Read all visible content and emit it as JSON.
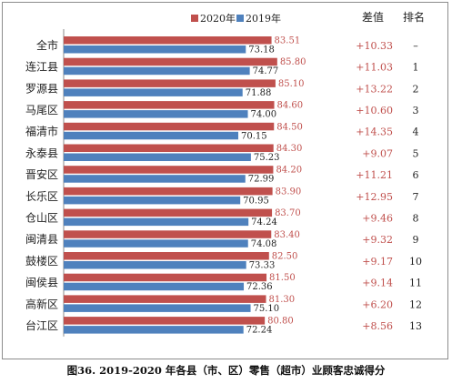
{
  "chart_data": {
    "type": "bar",
    "orientation": "horizontal",
    "categories": [
      "全市",
      "连江县",
      "罗源县",
      "马尾区",
      "福清市",
      "永泰县",
      "晋安区",
      "长乐区",
      "仓山区",
      "闽清县",
      "鼓楼区",
      "闽侯县",
      "高新区",
      "台江区"
    ],
    "series": [
      {
        "name": "2020年",
        "color": "#c0504d",
        "values": [
          83.51,
          85.8,
          85.1,
          84.6,
          84.5,
          84.3,
          84.2,
          83.9,
          83.7,
          83.4,
          82.5,
          81.5,
          81.3,
          80.8
        ],
        "labels": [
          "83.51",
          "85.80",
          "85.10",
          "84.60",
          "84.50",
          "84.30",
          "84.20",
          "83.90",
          "83.70",
          "83.40",
          "82.50",
          "81.50",
          "81.30",
          "80.80"
        ]
      },
      {
        "name": "2019年",
        "color": "#4f81bd",
        "values": [
          73.18,
          74.77,
          71.88,
          74.0,
          70.15,
          75.23,
          72.99,
          70.95,
          74.24,
          74.08,
          73.33,
          72.36,
          75.1,
          72.24
        ],
        "labels": [
          "73.18",
          "74.77",
          "71.88",
          "74.00",
          "70.15",
          "75.23",
          "72.99",
          "70.95",
          "74.24",
          "74.08",
          "73.33",
          "72.36",
          "75.10",
          "72.24"
        ]
      }
    ],
    "diff_header": "差值",
    "rank_header": "排名",
    "diffs": [
      "+10.33",
      "+11.03",
      "+13.22",
      "+10.60",
      "+14.35",
      "+9.07",
      "+11.21",
      "+12.95",
      "+9.46",
      "+9.32",
      "+9.17",
      "+9.14",
      "+6.20",
      "+8.56"
    ],
    "ranks": [
      "–",
      "1",
      "2",
      "3",
      "4",
      "5",
      "6",
      "7",
      "8",
      "9",
      "10",
      "11",
      "12",
      "13"
    ],
    "xlim": [
      0,
      95
    ],
    "grid": false,
    "legend_position": "top"
  },
  "caption": "图36.   2019-2020 年各县（市、区）零售（超市）业顾客忠诚得分",
  "colors": {
    "series_2020": "#c0504d",
    "series_2019": "#4f81bd",
    "diff_text": "#c0504d"
  }
}
